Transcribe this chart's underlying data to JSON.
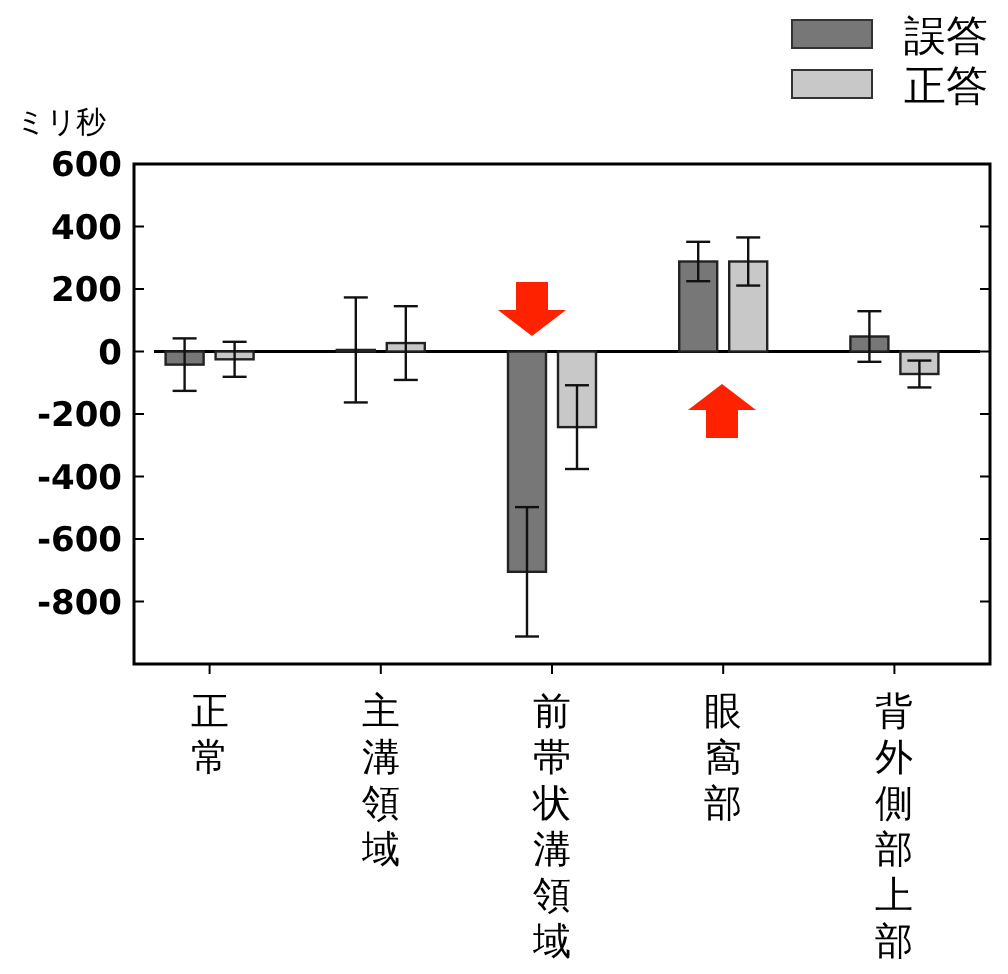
{
  "chart_data": {
    "type": "bar",
    "ylabel": "ミリ秒",
    "categories": [
      "正常",
      "主溝領域",
      "前帯状溝領域",
      "眼窩部",
      "背外側部上部"
    ],
    "series": [
      {
        "name": "誤答",
        "color": "#777777",
        "values": [
          -42,
          5,
          -705,
          288,
          48
        ],
        "errors": [
          84,
          168,
          207,
          63,
          81
        ]
      },
      {
        "name": "正答",
        "color": "#c8c8c8",
        "values": [
          -25,
          27,
          -242,
          288,
          -72
        ],
        "errors": [
          56,
          118,
          134,
          77,
          43
        ]
      }
    ],
    "ylim": [
      -1000,
      600
    ],
    "yticks": [
      600,
      400,
      200,
      0,
      -200,
      -400,
      -600,
      -800
    ],
    "ref_lines": [
      {
        "axis": "y",
        "value": 0
      }
    ],
    "grid": false,
    "legend": "top right"
  }
}
